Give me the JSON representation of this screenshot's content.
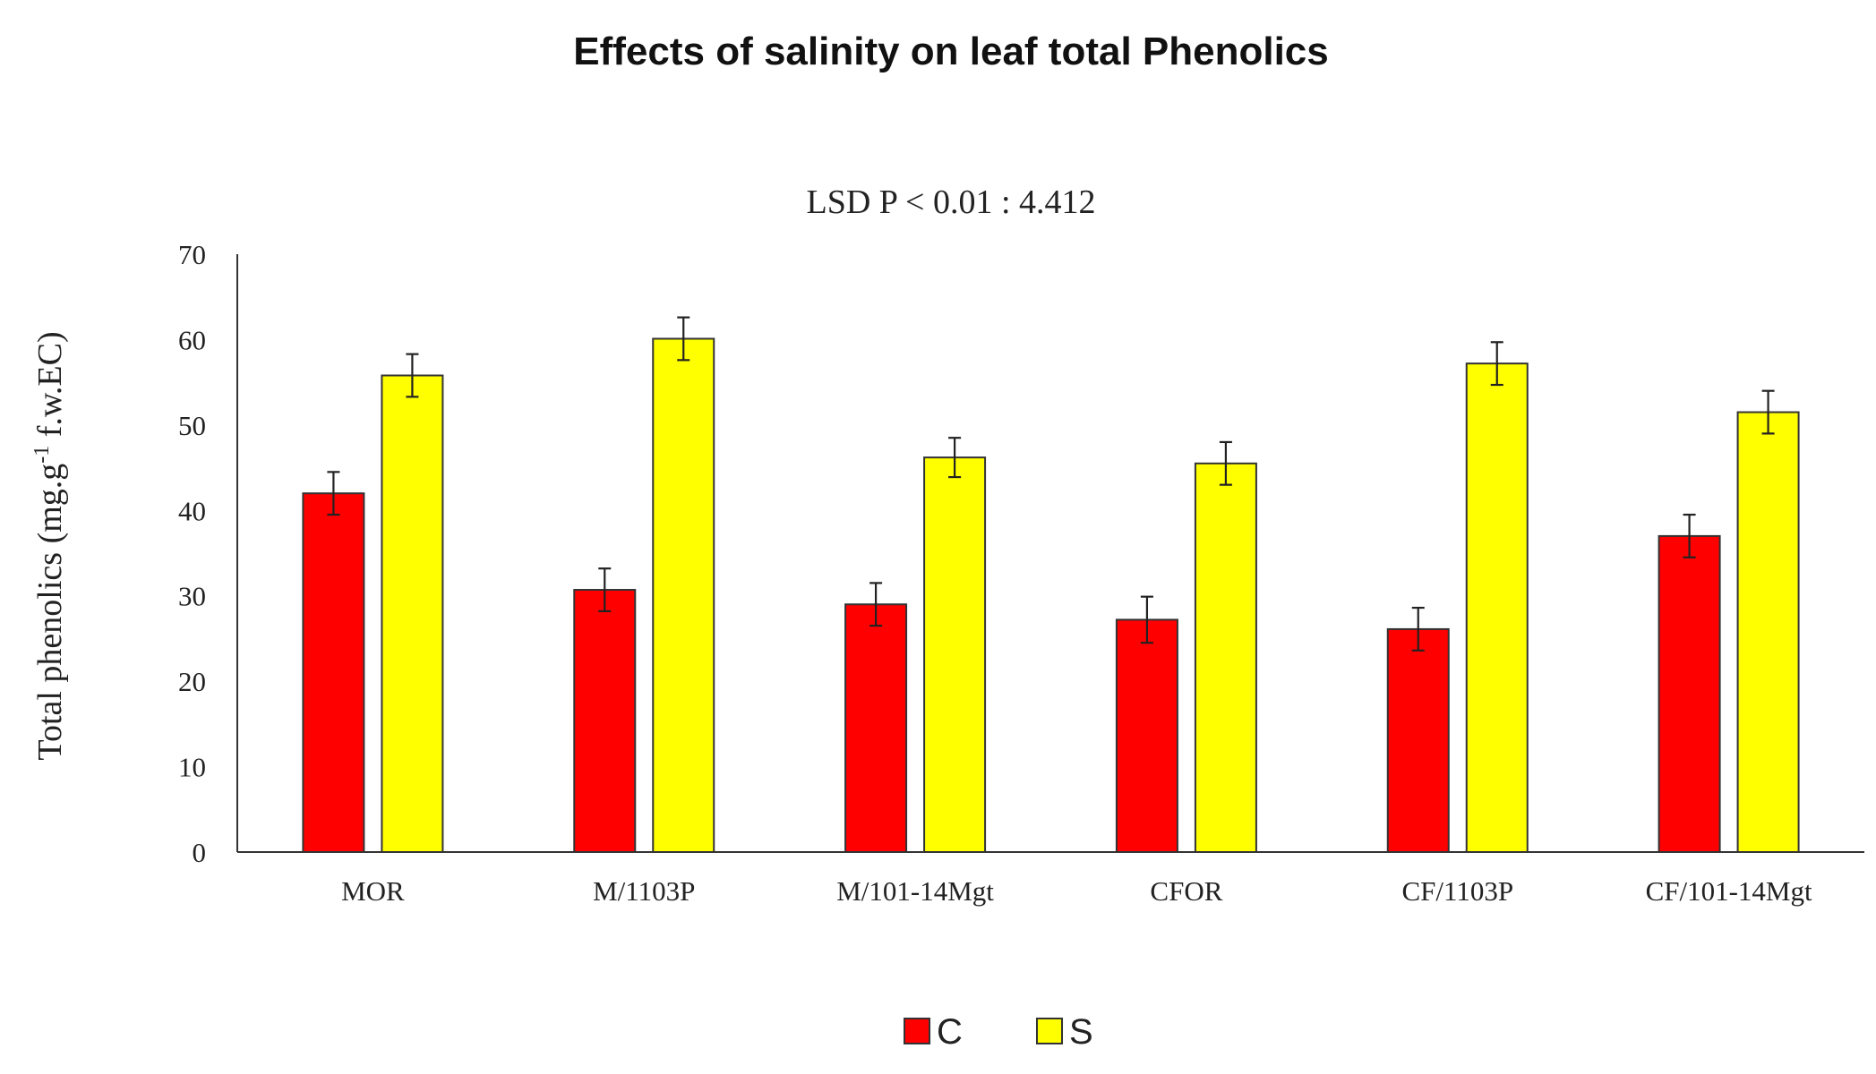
{
  "chart_data": {
    "type": "bar",
    "title": "Effects of salinity on leaf total Phenolics",
    "subtitle": "LSD P < 0.01 : 4.412",
    "ylabel_main": "Total phenolics (mg.g",
    "ylabel_sup": "-1",
    "ylabel_tail": " f.w.EC)",
    "xlabel": "",
    "ylim": [
      0,
      70
    ],
    "yticks": [
      "0",
      "10",
      "20",
      "30",
      "40",
      "50",
      "60",
      "70"
    ],
    "categories": [
      "MOR",
      "M/1103P",
      "M/101-14Mgt",
      "CFOR",
      "CF/1103P",
      "CF/101-14Mgt"
    ],
    "series": [
      {
        "name": "C",
        "color": "#ff0000",
        "values": [
          42.0,
          30.7,
          29.0,
          27.2,
          26.1,
          37.0
        ],
        "errors": [
          2.5,
          2.5,
          2.5,
          2.7,
          2.5,
          2.5
        ]
      },
      {
        "name": "S",
        "color": "#ffff00",
        "values": [
          55.8,
          60.1,
          46.2,
          45.5,
          57.2,
          51.5
        ],
        "errors": [
          2.5,
          2.5,
          2.3,
          2.5,
          2.5,
          2.5
        ]
      }
    ],
    "legend_position": "bottom",
    "grid": false
  }
}
